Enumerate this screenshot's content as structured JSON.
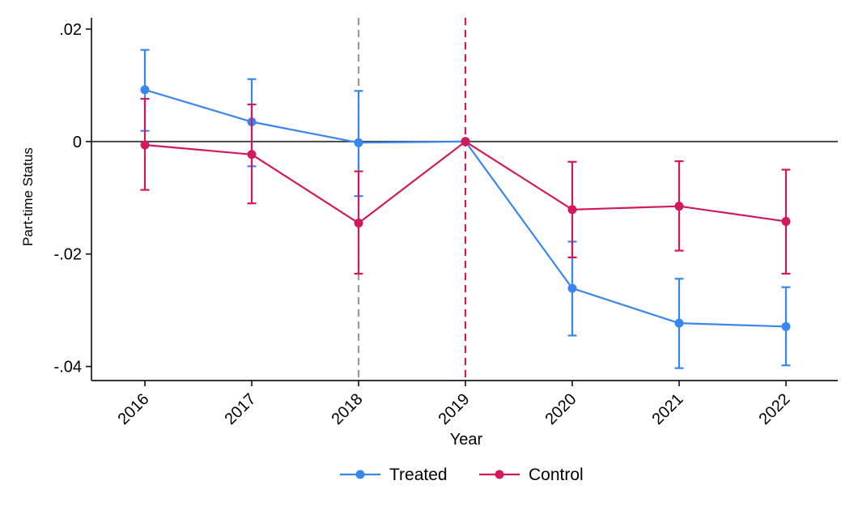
{
  "chart_data": {
    "type": "line",
    "title": "",
    "xlabel": "Year",
    "ylabel": "Part-time Status",
    "x": [
      2016,
      2017,
      2018,
      2019,
      2020,
      2021,
      2022
    ],
    "x_tick_labels": [
      "2016",
      "2017",
      "2018",
      "2019",
      "2020",
      "2021",
      "2022"
    ],
    "y_ticks": [
      0.02,
      0,
      -0.02,
      -0.04
    ],
    "y_tick_labels": [
      ".02",
      "0",
      "-.02",
      "-.04"
    ],
    "ylim": [
      -0.0425,
      0.022
    ],
    "grid": false,
    "zero_line": {
      "y": 0,
      "color": "#3d3d3d"
    },
    "vlines": [
      {
        "x": 2018,
        "color": "#9a9a9a",
        "style": "dashed"
      },
      {
        "x": 2019,
        "color": "#d1195e",
        "style": "dashed"
      }
    ],
    "series": [
      {
        "name": "Treated",
        "color": "#3a86ef",
        "marker": "circle",
        "estimates": [
          0.0092,
          0.0035,
          -0.0002,
          0,
          -0.0261,
          -0.0323,
          -0.0329
        ],
        "ci_low": [
          0.0019,
          -0.0044,
          -0.0097,
          0,
          -0.0345,
          -0.0403,
          -0.0398
        ],
        "ci_high": [
          0.0163,
          0.0111,
          0.009,
          0,
          -0.0178,
          -0.0244,
          -0.0259
        ]
      },
      {
        "name": "Control",
        "color": "#d1195e",
        "marker": "circle",
        "estimates": [
          -0.0006,
          -0.0023,
          -0.0145,
          0,
          -0.0121,
          -0.0115,
          -0.0142
        ],
        "ci_low": [
          -0.0086,
          -0.011,
          -0.0235,
          0,
          -0.0206,
          -0.0194,
          -0.0235
        ],
        "ci_high": [
          0.0076,
          0.0066,
          -0.0053,
          0,
          -0.0036,
          -0.0035,
          -0.005
        ]
      }
    ],
    "legend": {
      "position": "bottom"
    },
    "axis_color": "#1a1a1a"
  }
}
